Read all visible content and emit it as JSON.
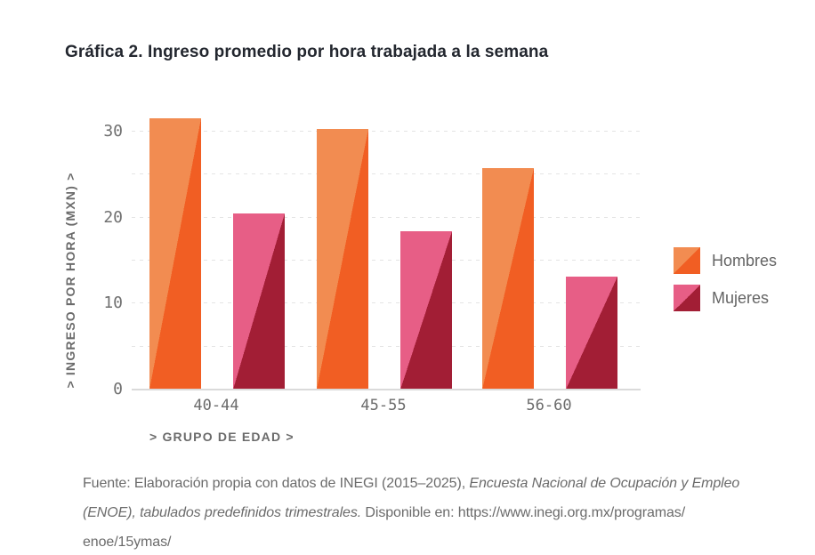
{
  "header": {
    "title": "Gráfica 2. Ingreso promedio por hora trabajada a la semana"
  },
  "chart_data": {
    "type": "bar",
    "title": "Gráfica 2. Ingreso promedio por hora trabajada a la semana",
    "categories": [
      "40-44",
      "45-55",
      "56-60"
    ],
    "series": [
      {
        "name": "Hombres",
        "values": [
          31.5,
          30.3,
          25.8
        ],
        "color_light": "#F28C51",
        "color_dark": "#F15E23"
      },
      {
        "name": "Mujeres",
        "values": [
          20.5,
          18.4,
          13.1
        ],
        "color_light": "#E75E86",
        "color_dark": "#A21E35"
      }
    ],
    "xlabel": "> GRUPO DE EDAD >",
    "ylabel": "> INGRESO POR HORA (MXN) >",
    "yticks": [
      0,
      10,
      20,
      30
    ],
    "gridline_step": 5,
    "ylim": [
      0,
      35
    ],
    "grid": "dashed",
    "legend_position": "right",
    "bar_style": "diagonal-two-tone"
  },
  "style": {
    "gridline_color": "#E4E4E4",
    "axis_line_color": "#DADADA",
    "tick_text_color": "#707070",
    "axis_title_color": "#6B6B6B",
    "title_color": "#23272F",
    "footer_color": "#6B6B6B",
    "background": "#FFFFFF"
  },
  "footer": {
    "lines": [
      [
        {
          "t": "Fuente: Elaboración propia con datos de INEGI (2015–2025), ",
          "i": false
        },
        {
          "t": "Encuesta Nacional de Ocupación y Empleo",
          "i": true
        }
      ],
      [
        {
          "t": "(ENOE), tabulados predefinidos trimestrales.",
          "i": true
        },
        {
          "t": " Disponible en: https://www.inegi.org.mx/programas/",
          "i": false
        }
      ],
      [
        {
          "t": "enoe/15ymas/",
          "i": false
        }
      ]
    ]
  }
}
